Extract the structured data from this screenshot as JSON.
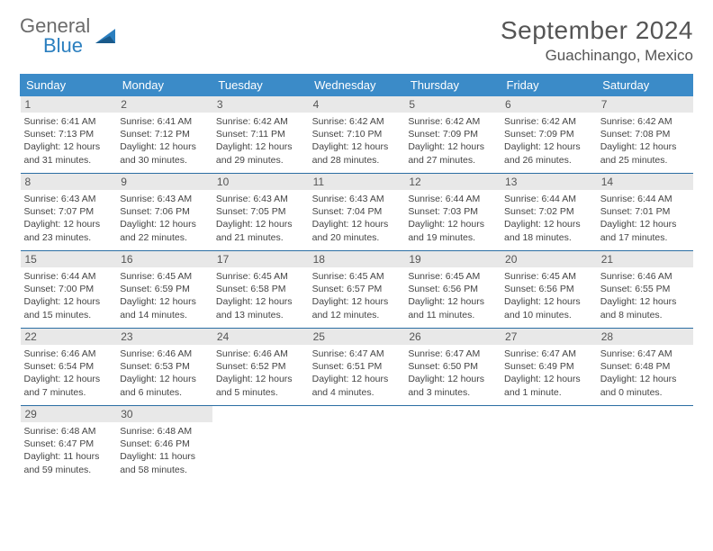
{
  "brand": {
    "word1": "General",
    "word2": "Blue"
  },
  "title": "September 2024",
  "location": "Guachinango, Mexico",
  "colors": {
    "header_bg": "#3b8bc8",
    "header_text": "#ffffff",
    "daynum_bg": "#e8e8e8",
    "daynum_text": "#555555",
    "border": "#2b6ea3",
    "brand_gray": "#6b6b6b",
    "brand_blue": "#2b7fbf"
  },
  "weekdays": [
    "Sunday",
    "Monday",
    "Tuesday",
    "Wednesday",
    "Thursday",
    "Friday",
    "Saturday"
  ],
  "weeks": [
    [
      {
        "n": "1",
        "sr": "6:41 AM",
        "ss": "7:13 PM",
        "dl": "12 hours and 31 minutes."
      },
      {
        "n": "2",
        "sr": "6:41 AM",
        "ss": "7:12 PM",
        "dl": "12 hours and 30 minutes."
      },
      {
        "n": "3",
        "sr": "6:42 AM",
        "ss": "7:11 PM",
        "dl": "12 hours and 29 minutes."
      },
      {
        "n": "4",
        "sr": "6:42 AM",
        "ss": "7:10 PM",
        "dl": "12 hours and 28 minutes."
      },
      {
        "n": "5",
        "sr": "6:42 AM",
        "ss": "7:09 PM",
        "dl": "12 hours and 27 minutes."
      },
      {
        "n": "6",
        "sr": "6:42 AM",
        "ss": "7:09 PM",
        "dl": "12 hours and 26 minutes."
      },
      {
        "n": "7",
        "sr": "6:42 AM",
        "ss": "7:08 PM",
        "dl": "12 hours and 25 minutes."
      }
    ],
    [
      {
        "n": "8",
        "sr": "6:43 AM",
        "ss": "7:07 PM",
        "dl": "12 hours and 23 minutes."
      },
      {
        "n": "9",
        "sr": "6:43 AM",
        "ss": "7:06 PM",
        "dl": "12 hours and 22 minutes."
      },
      {
        "n": "10",
        "sr": "6:43 AM",
        "ss": "7:05 PM",
        "dl": "12 hours and 21 minutes."
      },
      {
        "n": "11",
        "sr": "6:43 AM",
        "ss": "7:04 PM",
        "dl": "12 hours and 20 minutes."
      },
      {
        "n": "12",
        "sr": "6:44 AM",
        "ss": "7:03 PM",
        "dl": "12 hours and 19 minutes."
      },
      {
        "n": "13",
        "sr": "6:44 AM",
        "ss": "7:02 PM",
        "dl": "12 hours and 18 minutes."
      },
      {
        "n": "14",
        "sr": "6:44 AM",
        "ss": "7:01 PM",
        "dl": "12 hours and 17 minutes."
      }
    ],
    [
      {
        "n": "15",
        "sr": "6:44 AM",
        "ss": "7:00 PM",
        "dl": "12 hours and 15 minutes."
      },
      {
        "n": "16",
        "sr": "6:45 AM",
        "ss": "6:59 PM",
        "dl": "12 hours and 14 minutes."
      },
      {
        "n": "17",
        "sr": "6:45 AM",
        "ss": "6:58 PM",
        "dl": "12 hours and 13 minutes."
      },
      {
        "n": "18",
        "sr": "6:45 AM",
        "ss": "6:57 PM",
        "dl": "12 hours and 12 minutes."
      },
      {
        "n": "19",
        "sr": "6:45 AM",
        "ss": "6:56 PM",
        "dl": "12 hours and 11 minutes."
      },
      {
        "n": "20",
        "sr": "6:45 AM",
        "ss": "6:56 PM",
        "dl": "12 hours and 10 minutes."
      },
      {
        "n": "21",
        "sr": "6:46 AM",
        "ss": "6:55 PM",
        "dl": "12 hours and 8 minutes."
      }
    ],
    [
      {
        "n": "22",
        "sr": "6:46 AM",
        "ss": "6:54 PM",
        "dl": "12 hours and 7 minutes."
      },
      {
        "n": "23",
        "sr": "6:46 AM",
        "ss": "6:53 PM",
        "dl": "12 hours and 6 minutes."
      },
      {
        "n": "24",
        "sr": "6:46 AM",
        "ss": "6:52 PM",
        "dl": "12 hours and 5 minutes."
      },
      {
        "n": "25",
        "sr": "6:47 AM",
        "ss": "6:51 PM",
        "dl": "12 hours and 4 minutes."
      },
      {
        "n": "26",
        "sr": "6:47 AM",
        "ss": "6:50 PM",
        "dl": "12 hours and 3 minutes."
      },
      {
        "n": "27",
        "sr": "6:47 AM",
        "ss": "6:49 PM",
        "dl": "12 hours and 1 minute."
      },
      {
        "n": "28",
        "sr": "6:47 AM",
        "ss": "6:48 PM",
        "dl": "12 hours and 0 minutes."
      }
    ],
    [
      {
        "n": "29",
        "sr": "6:48 AM",
        "ss": "6:47 PM",
        "dl": "11 hours and 59 minutes."
      },
      {
        "n": "30",
        "sr": "6:48 AM",
        "ss": "6:46 PM",
        "dl": "11 hours and 58 minutes."
      },
      null,
      null,
      null,
      null,
      null
    ]
  ]
}
